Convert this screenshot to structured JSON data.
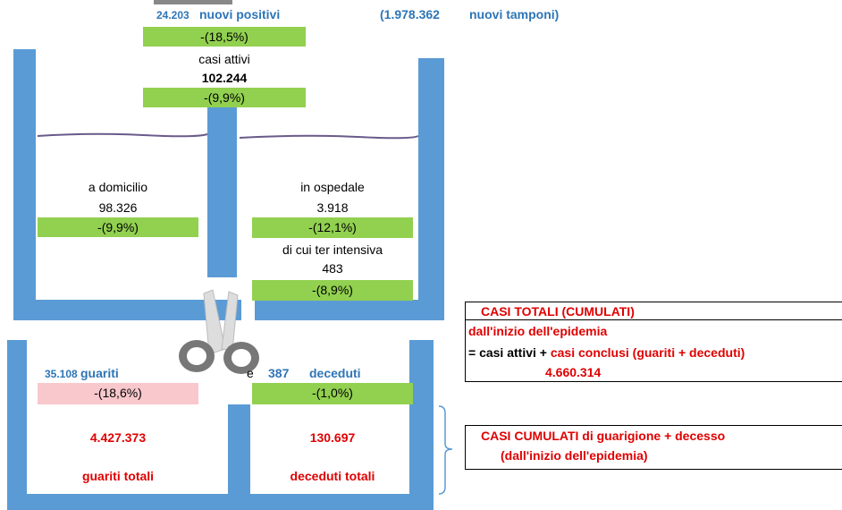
{
  "header": {
    "new_positives_value": "24.203",
    "new_positives_label": "nuovi positivi",
    "tests_value": "(1.978.362",
    "tests_label": "nuovi tamponi)",
    "new_positives_change": "-(18,5%)"
  },
  "active": {
    "label": "casi attivi",
    "value": "102.244",
    "change": "-(9,9%)"
  },
  "home": {
    "label": "a domicilio",
    "value": "98.326",
    "change": "-(9,9%)"
  },
  "hospital": {
    "label": "in ospedale",
    "value": "3.918",
    "change": "-(12,1%)"
  },
  "intensive": {
    "label": "di cui ter intensiva",
    "value": "483",
    "change": "-(8,9%)"
  },
  "recovered": {
    "new_value": "35.108",
    "new_label": "guariti",
    "change": "-(18,6%)",
    "total": "4.427.373",
    "total_label": "guariti totali"
  },
  "connector": "e",
  "deceased": {
    "new_value": "387",
    "new_label": "deceduti",
    "change": "-(1,0%)",
    "total": "130.697",
    "total_label": "deceduti totali"
  },
  "cumulative_box": {
    "title": "CASI TOTALI (CUMULATI)",
    "subtitle": "dall'inizio dell'epidemia",
    "formula_start": "= casi attivi + ",
    "formula_end": "casi conclusi (guariti + deceduti)",
    "value": "4.660.314"
  },
  "outcomes_box": {
    "title": "CASI CUMULATI di guarigione + decesso",
    "subtitle": "(dall'inizio dell'epidemia)"
  }
}
